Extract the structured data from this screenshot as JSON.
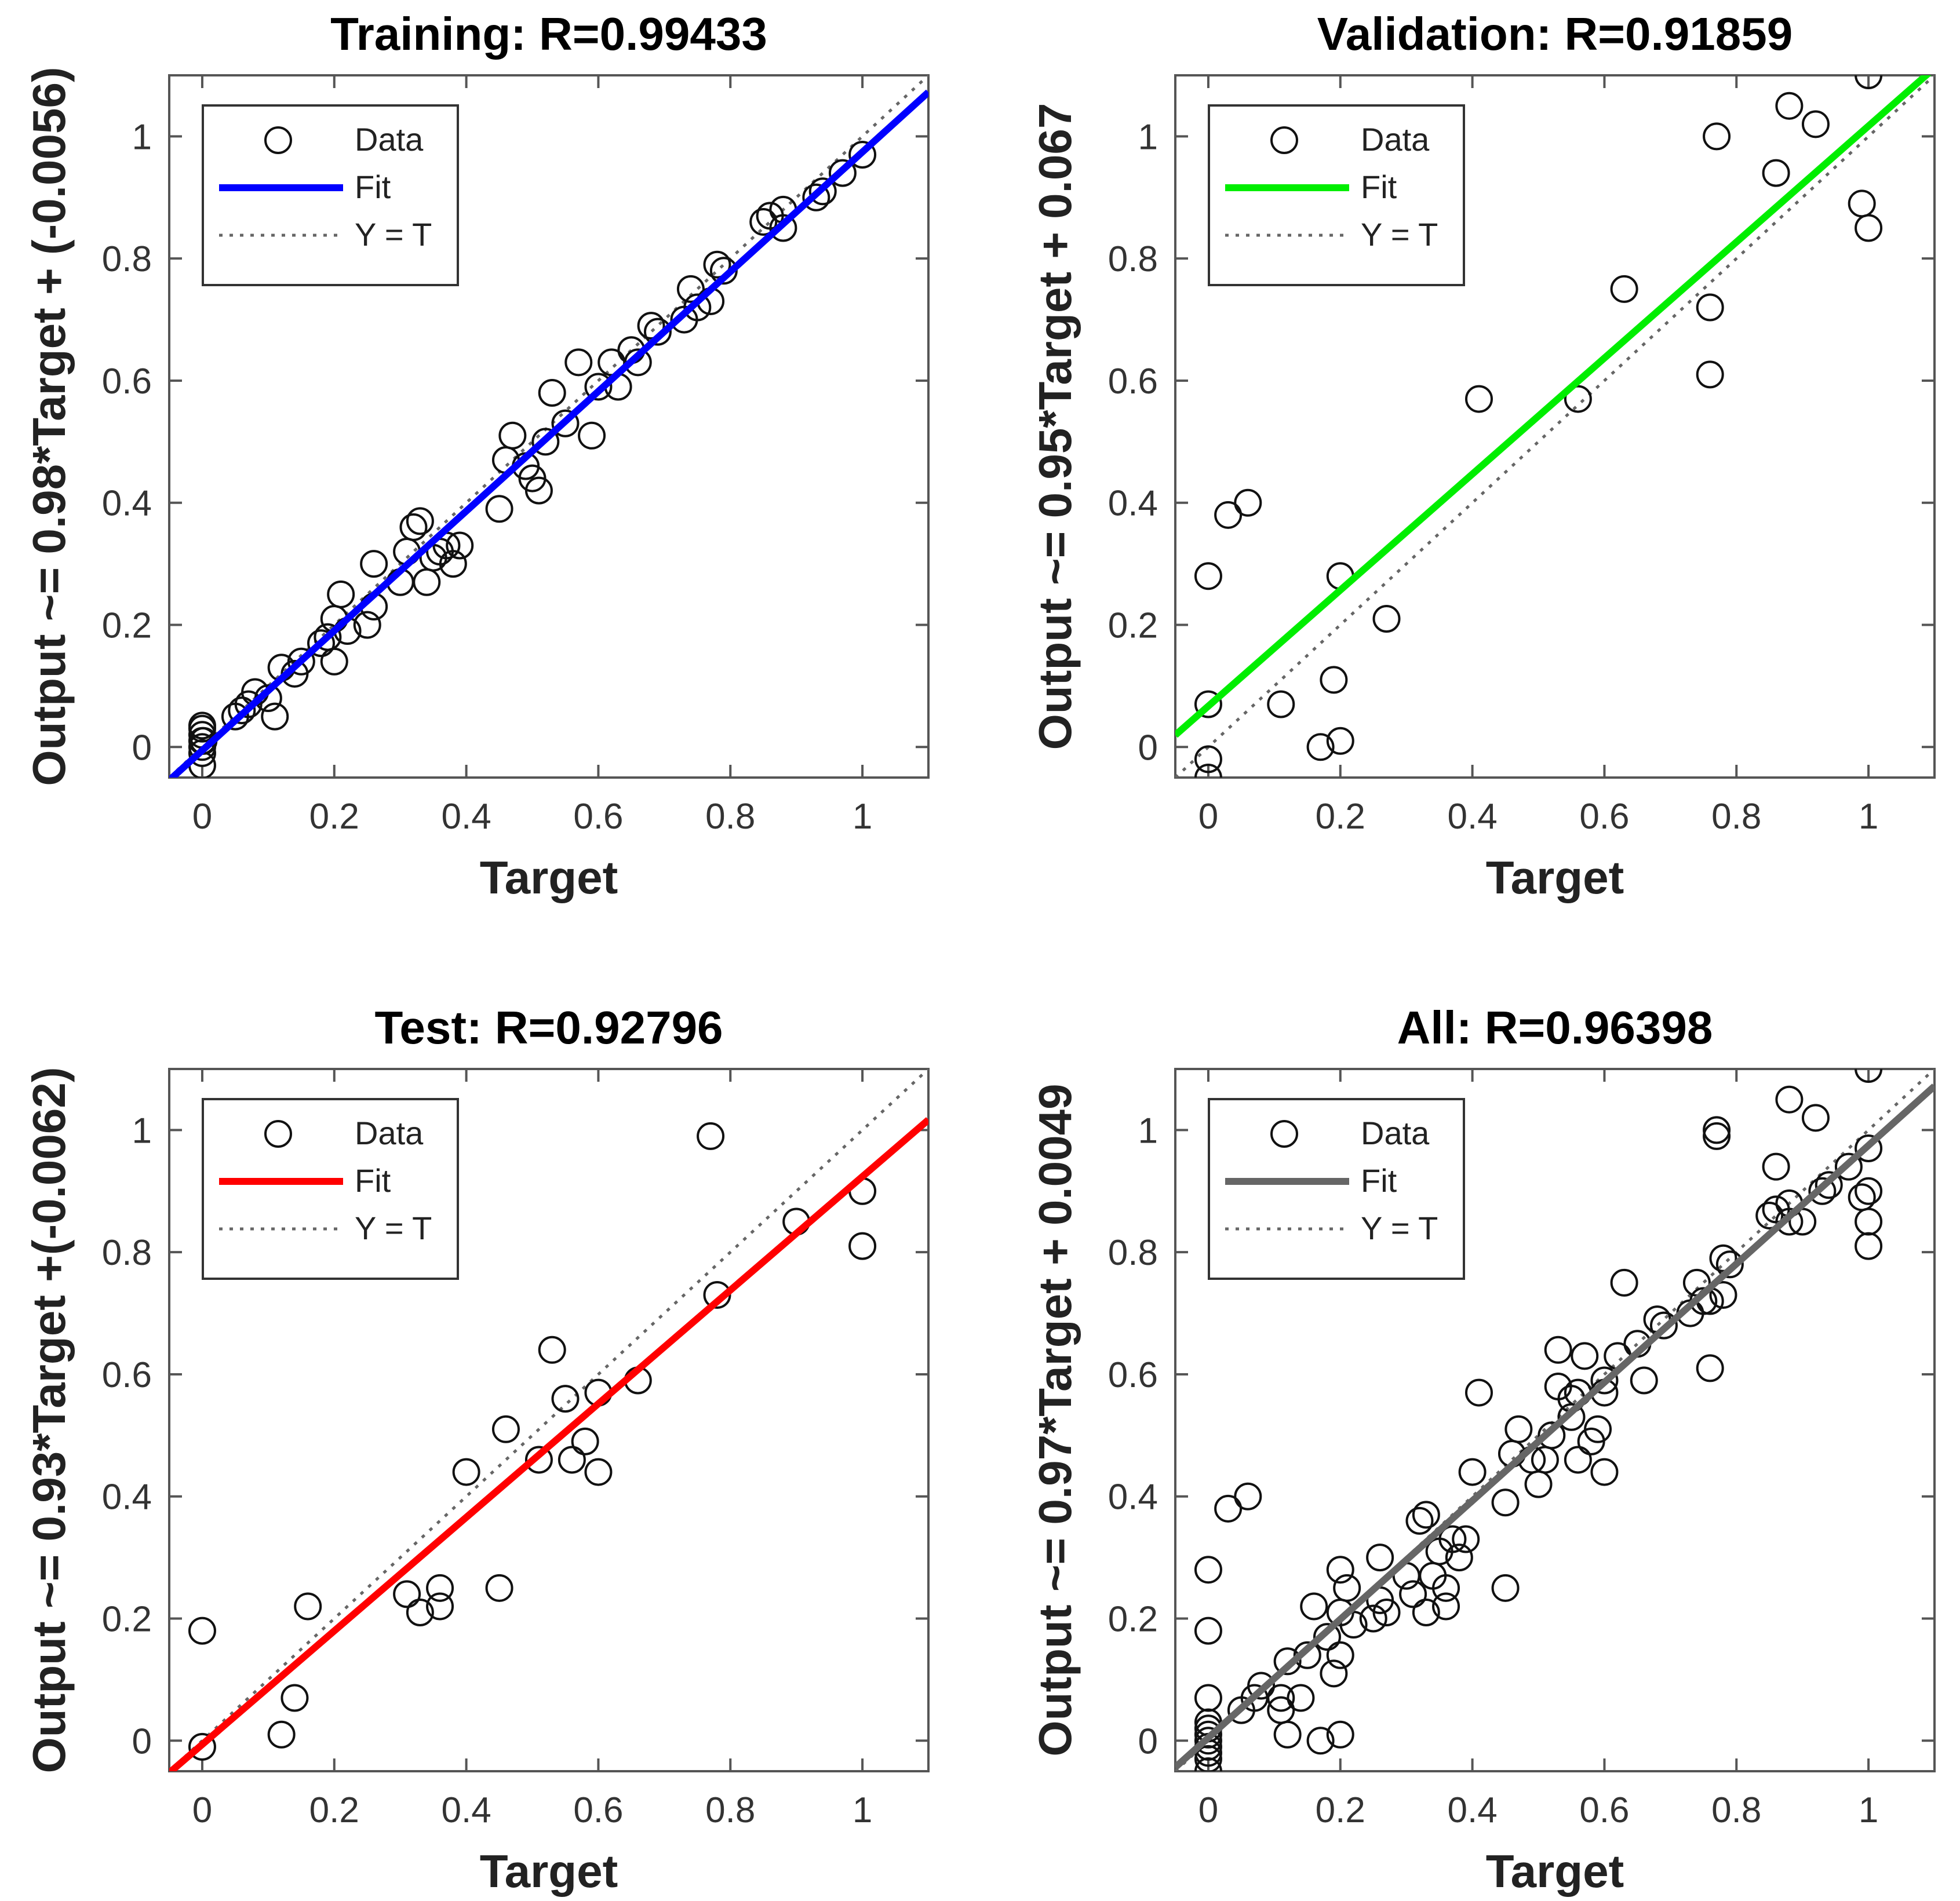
{
  "chart_data": [
    {
      "type": "scatter",
      "title": "Training: R=0.99433",
      "xlabel": "Target",
      "ylabel": "Output ~= 0.98*Target + (-0.0056)",
      "xlim": [
        -0.05,
        1.1
      ],
      "ylim": [
        -0.05,
        1.1
      ],
      "xticks": [
        0,
        0.2,
        0.4,
        0.6,
        0.8,
        1
      ],
      "xtick_labels": [
        "0",
        "0.2",
        "0.4",
        "0.6",
        "0.8",
        "1"
      ],
      "yticks": [
        0,
        0.2,
        0.4,
        0.6,
        0.8,
        1
      ],
      "ytick_labels": [
        "0",
        "0.2",
        "0.4",
        "0.6",
        "0.8",
        "1"
      ],
      "fit": {
        "slope": 0.98,
        "intercept": -0.0056,
        "color": "#0000ff"
      },
      "legend": [
        "Data",
        "Fit",
        "Y = T"
      ],
      "legend_position": "top-left",
      "points": [
        [
          0,
          -0.03
        ],
        [
          0,
          -0.01
        ],
        [
          0,
          0
        ],
        [
          0,
          0.01
        ],
        [
          0,
          0.02
        ],
        [
          0,
          0.03
        ],
        [
          0,
          0.035
        ],
        [
          0.002,
          0.01
        ],
        [
          0.05,
          0.05
        ],
        [
          0.06,
          0.06
        ],
        [
          0.07,
          0.07
        ],
        [
          0.08,
          0.09
        ],
        [
          0.1,
          0.08
        ],
        [
          0.11,
          0.05
        ],
        [
          0.12,
          0.13
        ],
        [
          0.14,
          0.12
        ],
        [
          0.15,
          0.14
        ],
        [
          0.18,
          0.17
        ],
        [
          0.19,
          0.18
        ],
        [
          0.2,
          0.14
        ],
        [
          0.2,
          0.21
        ],
        [
          0.21,
          0.25
        ],
        [
          0.22,
          0.19
        ],
        [
          0.25,
          0.2
        ],
        [
          0.26,
          0.23
        ],
        [
          0.26,
          0.3
        ],
        [
          0.3,
          0.27
        ],
        [
          0.31,
          0.32
        ],
        [
          0.32,
          0.36
        ],
        [
          0.33,
          0.37
        ],
        [
          0.34,
          0.27
        ],
        [
          0.35,
          0.31
        ],
        [
          0.36,
          0.32
        ],
        [
          0.37,
          0.33
        ],
        [
          0.38,
          0.3
        ],
        [
          0.39,
          0.33
        ],
        [
          0.45,
          0.39
        ],
        [
          0.46,
          0.47
        ],
        [
          0.47,
          0.51
        ],
        [
          0.49,
          0.46
        ],
        [
          0.5,
          0.44
        ],
        [
          0.51,
          0.42
        ],
        [
          0.52,
          0.5
        ],
        [
          0.53,
          0.58
        ],
        [
          0.55,
          0.53
        ],
        [
          0.57,
          0.63
        ],
        [
          0.59,
          0.51
        ],
        [
          0.6,
          0.59
        ],
        [
          0.62,
          0.63
        ],
        [
          0.63,
          0.59
        ],
        [
          0.65,
          0.65
        ],
        [
          0.66,
          0.63
        ],
        [
          0.68,
          0.69
        ],
        [
          0.69,
          0.68
        ],
        [
          0.73,
          0.7
        ],
        [
          0.74,
          0.75
        ],
        [
          0.75,
          0.72
        ],
        [
          0.77,
          0.73
        ],
        [
          0.78,
          0.79
        ],
        [
          0.79,
          0.78
        ],
        [
          0.85,
          0.86
        ],
        [
          0.86,
          0.87
        ],
        [
          0.88,
          0.88
        ],
        [
          0.88,
          0.85
        ],
        [
          0.93,
          0.9
        ],
        [
          0.94,
          0.91
        ],
        [
          0.97,
          0.94
        ],
        [
          1.0,
          0.97
        ]
      ]
    },
    {
      "type": "scatter",
      "title": "Validation: R=0.91859",
      "xlabel": "Target",
      "ylabel": "Output ~= 0.95*Target + 0.067",
      "xlim": [
        -0.05,
        1.1
      ],
      "ylim": [
        -0.05,
        1.1
      ],
      "xticks": [
        0,
        0.2,
        0.4,
        0.6,
        0.8,
        1
      ],
      "xtick_labels": [
        "0",
        "0.2",
        "0.4",
        "0.6",
        "0.8",
        "1"
      ],
      "yticks": [
        0,
        0.2,
        0.4,
        0.6,
        0.8,
        1
      ],
      "ytick_labels": [
        "0",
        "0.2",
        "0.4",
        "0.6",
        "0.8",
        "1"
      ],
      "fit": {
        "slope": 0.95,
        "intercept": 0.067,
        "color": "#00ee00"
      },
      "legend": [
        "Data",
        "Fit",
        "Y = T"
      ],
      "legend_position": "top-left",
      "points": [
        [
          0,
          -0.05
        ],
        [
          0,
          -0.02
        ],
        [
          0,
          0.07
        ],
        [
          0,
          0.28
        ],
        [
          0.03,
          0.38
        ],
        [
          0.06,
          0.4
        ],
        [
          0.11,
          0.07
        ],
        [
          0.17,
          0
        ],
        [
          0.19,
          0.11
        ],
        [
          0.2,
          0.28
        ],
        [
          0.2,
          0.01
        ],
        [
          0.27,
          0.21
        ],
        [
          0.41,
          0.57
        ],
        [
          0.56,
          0.57
        ],
        [
          0.63,
          0.75
        ],
        [
          0.76,
          0.72
        ],
        [
          0.76,
          0.61
        ],
        [
          0.77,
          1.0
        ],
        [
          0.86,
          0.94
        ],
        [
          0.88,
          1.05
        ],
        [
          0.92,
          1.02
        ],
        [
          0.99,
          0.89
        ],
        [
          1.0,
          0.85
        ],
        [
          1.0,
          1.1
        ]
      ]
    },
    {
      "type": "scatter",
      "title": "Test: R=0.92796",
      "xlabel": "Target",
      "ylabel": "Output ~= 0.93*Target +(-0.0062)",
      "xlim": [
        -0.05,
        1.1
      ],
      "ylim": [
        -0.05,
        1.1
      ],
      "xticks": [
        0,
        0.2,
        0.4,
        0.6,
        0.8,
        1
      ],
      "xtick_labels": [
        "0",
        "0.2",
        "0.4",
        "0.6",
        "0.8",
        "1"
      ],
      "yticks": [
        0,
        0.2,
        0.4,
        0.6,
        0.8,
        1
      ],
      "ytick_labels": [
        "0",
        "0.2",
        "0.4",
        "0.6",
        "0.8",
        "1"
      ],
      "fit": {
        "slope": 0.93,
        "intercept": -0.0062,
        "color": "#ff0000"
      },
      "legend": [
        "Data",
        "Fit",
        "Y = T"
      ],
      "legend_position": "top-left",
      "points": [
        [
          0,
          -0.01
        ],
        [
          0,
          0.18
        ],
        [
          0.12,
          0.01
        ],
        [
          0.14,
          0.07
        ],
        [
          0.16,
          0.22
        ],
        [
          0.31,
          0.24
        ],
        [
          0.33,
          0.21
        ],
        [
          0.36,
          0.22
        ],
        [
          0.36,
          0.25
        ],
        [
          0.4,
          0.44
        ],
        [
          0.45,
          0.25
        ],
        [
          0.46,
          0.51
        ],
        [
          0.51,
          0.46
        ],
        [
          0.53,
          0.64
        ],
        [
          0.55,
          0.56
        ],
        [
          0.56,
          0.46
        ],
        [
          0.58,
          0.49
        ],
        [
          0.6,
          0.44
        ],
        [
          0.6,
          0.57
        ],
        [
          0.66,
          0.59
        ],
        [
          0.77,
          0.99
        ],
        [
          0.78,
          0.73
        ],
        [
          0.9,
          0.85
        ],
        [
          1.0,
          0.9
        ],
        [
          1.0,
          0.81
        ]
      ]
    },
    {
      "type": "scatter",
      "title": "All: R=0.96398",
      "xlabel": "Target",
      "ylabel": "Output ~= 0.97*Target + 0.0049",
      "xlim": [
        -0.05,
        1.1
      ],
      "ylim": [
        -0.05,
        1.1
      ],
      "xticks": [
        0,
        0.2,
        0.4,
        0.6,
        0.8,
        1
      ],
      "xtick_labels": [
        "0",
        "0.2",
        "0.4",
        "0.6",
        "0.8",
        "1"
      ],
      "yticks": [
        0,
        0.2,
        0.4,
        0.6,
        0.8,
        1
      ],
      "ytick_labels": [
        "0",
        "0.2",
        "0.4",
        "0.6",
        "0.8",
        "1"
      ],
      "fit": {
        "slope": 0.97,
        "intercept": 0.0049,
        "color": "#666666"
      },
      "legend": [
        "Data",
        "Fit",
        "Y = T"
      ],
      "legend_position": "top-left",
      "points": [
        [
          0,
          -0.05
        ],
        [
          0,
          -0.03
        ],
        [
          0,
          -0.02
        ],
        [
          0,
          -0.01
        ],
        [
          0,
          0
        ],
        [
          0,
          0.01
        ],
        [
          0,
          0.02
        ],
        [
          0,
          0.03
        ],
        [
          0,
          0.07
        ],
        [
          0,
          0.18
        ],
        [
          0,
          0.28
        ],
        [
          0.03,
          0.38
        ],
        [
          0.06,
          0.4
        ],
        [
          0.05,
          0.05
        ],
        [
          0.07,
          0.07
        ],
        [
          0.08,
          0.09
        ],
        [
          0.11,
          0.07
        ],
        [
          0.11,
          0.05
        ],
        [
          0.12,
          0.01
        ],
        [
          0.12,
          0.13
        ],
        [
          0.14,
          0.07
        ],
        [
          0.15,
          0.14
        ],
        [
          0.16,
          0.22
        ],
        [
          0.17,
          0
        ],
        [
          0.18,
          0.17
        ],
        [
          0.19,
          0.11
        ],
        [
          0.2,
          0.01
        ],
        [
          0.2,
          0.14
        ],
        [
          0.2,
          0.21
        ],
        [
          0.2,
          0.28
        ],
        [
          0.21,
          0.25
        ],
        [
          0.22,
          0.19
        ],
        [
          0.25,
          0.2
        ],
        [
          0.26,
          0.23
        ],
        [
          0.26,
          0.3
        ],
        [
          0.27,
          0.21
        ],
        [
          0.3,
          0.27
        ],
        [
          0.31,
          0.24
        ],
        [
          0.32,
          0.36
        ],
        [
          0.33,
          0.37
        ],
        [
          0.33,
          0.21
        ],
        [
          0.34,
          0.27
        ],
        [
          0.35,
          0.31
        ],
        [
          0.36,
          0.22
        ],
        [
          0.36,
          0.25
        ],
        [
          0.37,
          0.33
        ],
        [
          0.38,
          0.3
        ],
        [
          0.39,
          0.33
        ],
        [
          0.4,
          0.44
        ],
        [
          0.41,
          0.57
        ],
        [
          0.45,
          0.25
        ],
        [
          0.45,
          0.39
        ],
        [
          0.46,
          0.47
        ],
        [
          0.47,
          0.51
        ],
        [
          0.49,
          0.46
        ],
        [
          0.5,
          0.42
        ],
        [
          0.51,
          0.46
        ],
        [
          0.52,
          0.5
        ],
        [
          0.53,
          0.58
        ],
        [
          0.53,
          0.64
        ],
        [
          0.55,
          0.53
        ],
        [
          0.55,
          0.56
        ],
        [
          0.56,
          0.46
        ],
        [
          0.56,
          0.57
        ],
        [
          0.57,
          0.63
        ],
        [
          0.58,
          0.49
        ],
        [
          0.59,
          0.51
        ],
        [
          0.6,
          0.44
        ],
        [
          0.6,
          0.57
        ],
        [
          0.6,
          0.59
        ],
        [
          0.62,
          0.63
        ],
        [
          0.63,
          0.75
        ],
        [
          0.65,
          0.65
        ],
        [
          0.66,
          0.59
        ],
        [
          0.68,
          0.69
        ],
        [
          0.69,
          0.68
        ],
        [
          0.73,
          0.7
        ],
        [
          0.74,
          0.75
        ],
        [
          0.75,
          0.72
        ],
        [
          0.76,
          0.72
        ],
        [
          0.76,
          0.61
        ],
        [
          0.77,
          0.99
        ],
        [
          0.77,
          1.0
        ],
        [
          0.78,
          0.73
        ],
        [
          0.78,
          0.79
        ],
        [
          0.79,
          0.78
        ],
        [
          0.85,
          0.86
        ],
        [
          0.86,
          0.94
        ],
        [
          0.86,
          0.87
        ],
        [
          0.88,
          1.05
        ],
        [
          0.88,
          0.88
        ],
        [
          0.88,
          0.85
        ],
        [
          0.9,
          0.85
        ],
        [
          0.92,
          1.02
        ],
        [
          0.93,
          0.9
        ],
        [
          0.94,
          0.91
        ],
        [
          0.97,
          0.94
        ],
        [
          0.99,
          0.89
        ],
        [
          1.0,
          0.97
        ],
        [
          1.0,
          0.9
        ],
        [
          1.0,
          0.85
        ],
        [
          1.0,
          0.81
        ],
        [
          1.0,
          1.1
        ]
      ]
    }
  ]
}
